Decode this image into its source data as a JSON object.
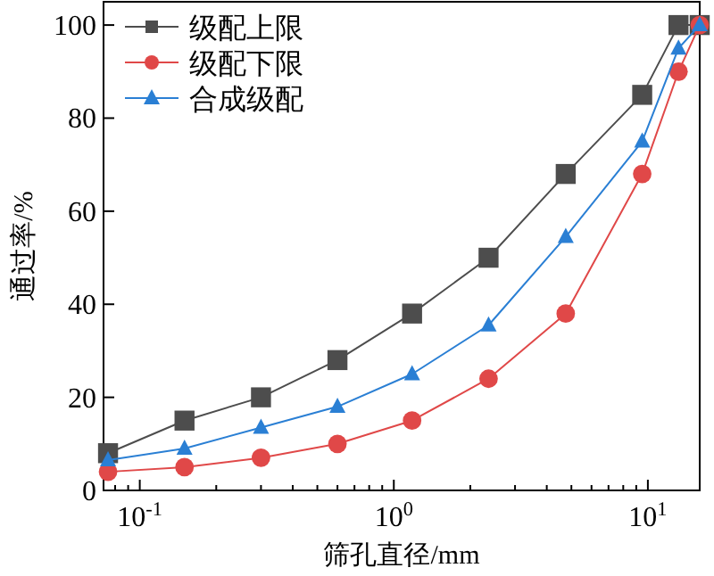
{
  "chart_data": {
    "type": "line",
    "xlabel": "筛孔直径/mm",
    "ylabel": "通过率/%",
    "log": "x",
    "xlim": [
      0.072,
      16
    ],
    "ylim": [
      0,
      105
    ],
    "xticks": [
      {
        "value": 0.08,
        "label": null
      },
      {
        "value": 0.09,
        "label": null
      },
      {
        "value": 0.1,
        "label": "10$^{-1}$"
      },
      {
        "value": 0.2,
        "label": null
      },
      {
        "value": 0.3,
        "label": null
      },
      {
        "value": 0.4,
        "label": null
      },
      {
        "value": 0.5,
        "label": null
      },
      {
        "value": 0.6,
        "label": null
      },
      {
        "value": 0.7,
        "label": null
      },
      {
        "value": 0.8,
        "label": null
      },
      {
        "value": 0.9,
        "label": null
      },
      {
        "value": 1,
        "label": "10$^{0}$"
      },
      {
        "value": 2,
        "label": null
      },
      {
        "value": 3,
        "label": null
      },
      {
        "value": 4,
        "label": null
      },
      {
        "value": 5,
        "label": null
      },
      {
        "value": 6,
        "label": null
      },
      {
        "value": 7,
        "label": null
      },
      {
        "value": 8,
        "label": null
      },
      {
        "value": 9,
        "label": null
      },
      {
        "value": 10,
        "label": "10$^{1}$"
      }
    ],
    "yticks": [
      0,
      20,
      40,
      60,
      80,
      100
    ],
    "grid": false,
    "legend": "top left",
    "x": [
      0.075,
      0.15,
      0.3,
      0.6,
      1.18,
      2.36,
      4.75,
      9.5,
      13.2,
      16
    ],
    "series": [
      {
        "name": "级配上限",
        "color": "#4d4d4d",
        "marker": "square",
        "values": [
          8,
          15,
          20,
          28,
          38,
          50,
          68,
          85,
          100,
          100
        ]
      },
      {
        "name": "级配下限",
        "color": "#e04848",
        "marker": "circle",
        "values": [
          4,
          5,
          7,
          10,
          15,
          24,
          38,
          68,
          90,
          100
        ]
      },
      {
        "name": "合成级配",
        "color": "#2a7fd4",
        "marker": "triangle",
        "values": [
          6.5,
          9,
          13.5,
          18,
          25,
          35.5,
          54.5,
          75,
          95,
          100
        ]
      }
    ]
  }
}
